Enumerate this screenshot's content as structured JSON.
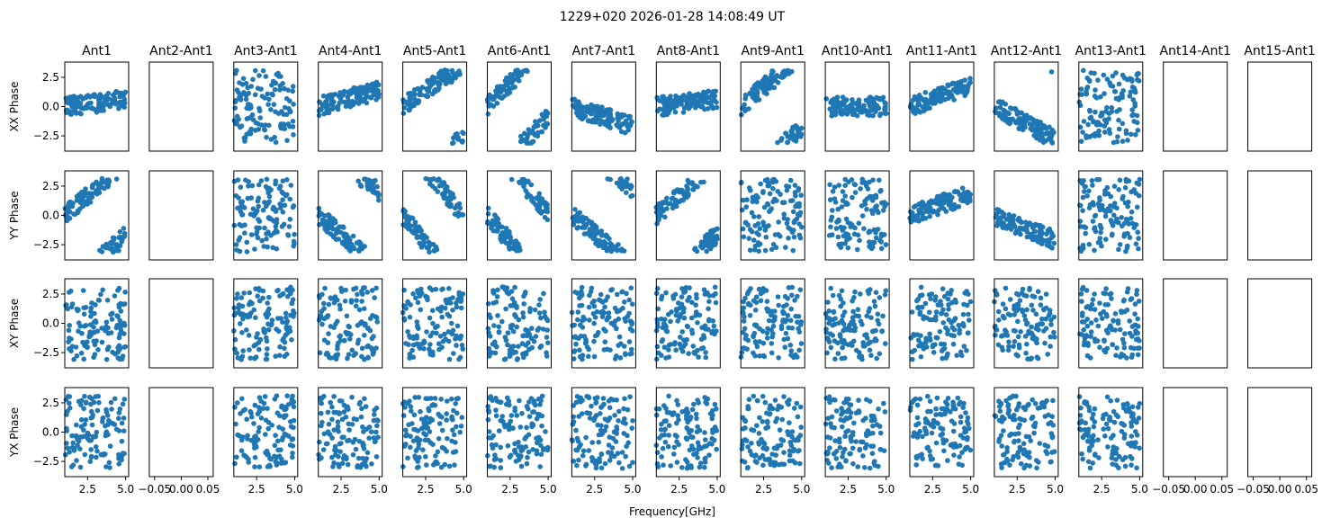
{
  "figure": {
    "suptitle": "1229+020 2026-01-28 14:08:49 UT",
    "xlabel": "Frequency[GHz]"
  },
  "chart_data": {
    "type": "scatter",
    "point_color": "#1f77b4",
    "columns": [
      "Ant1",
      "Ant2-Ant1",
      "Ant3-Ant1",
      "Ant4-Ant1",
      "Ant5-Ant1",
      "Ant6-Ant1",
      "Ant7-Ant1",
      "Ant8-Ant1",
      "Ant9-Ant1",
      "Ant10-Ant1",
      "Ant11-Ant1",
      "Ant12-Ant1",
      "Ant13-Ant1",
      "Ant14-Ant1",
      "Ant15-Ant1"
    ],
    "rows": [
      "XX Phase",
      "YY Phase",
      "XY Phase",
      "YX Phase"
    ],
    "empty_columns": [
      1,
      13,
      14
    ],
    "xlim": [
      1.0,
      5.2
    ],
    "ylim": [
      -3.8,
      3.8
    ],
    "yticks": [
      -2.5,
      0.0,
      2.5
    ],
    "ytick_labels": [
      "−2.5",
      "0.0",
      "2.5"
    ],
    "xticks": [
      2.5,
      5.0
    ],
    "xtick_labels": [
      "2.5",
      "5.0"
    ],
    "empty_xlim": [
      -0.06,
      0.06
    ],
    "empty_xticks": [
      -0.05,
      0.0,
      0.05
    ],
    "empty_xtick_labels": [
      "−0.05",
      "0.00",
      "0.05"
    ],
    "freq_range_GHz": [
      1.0,
      5.0
    ],
    "points_per_panel": 120
  }
}
